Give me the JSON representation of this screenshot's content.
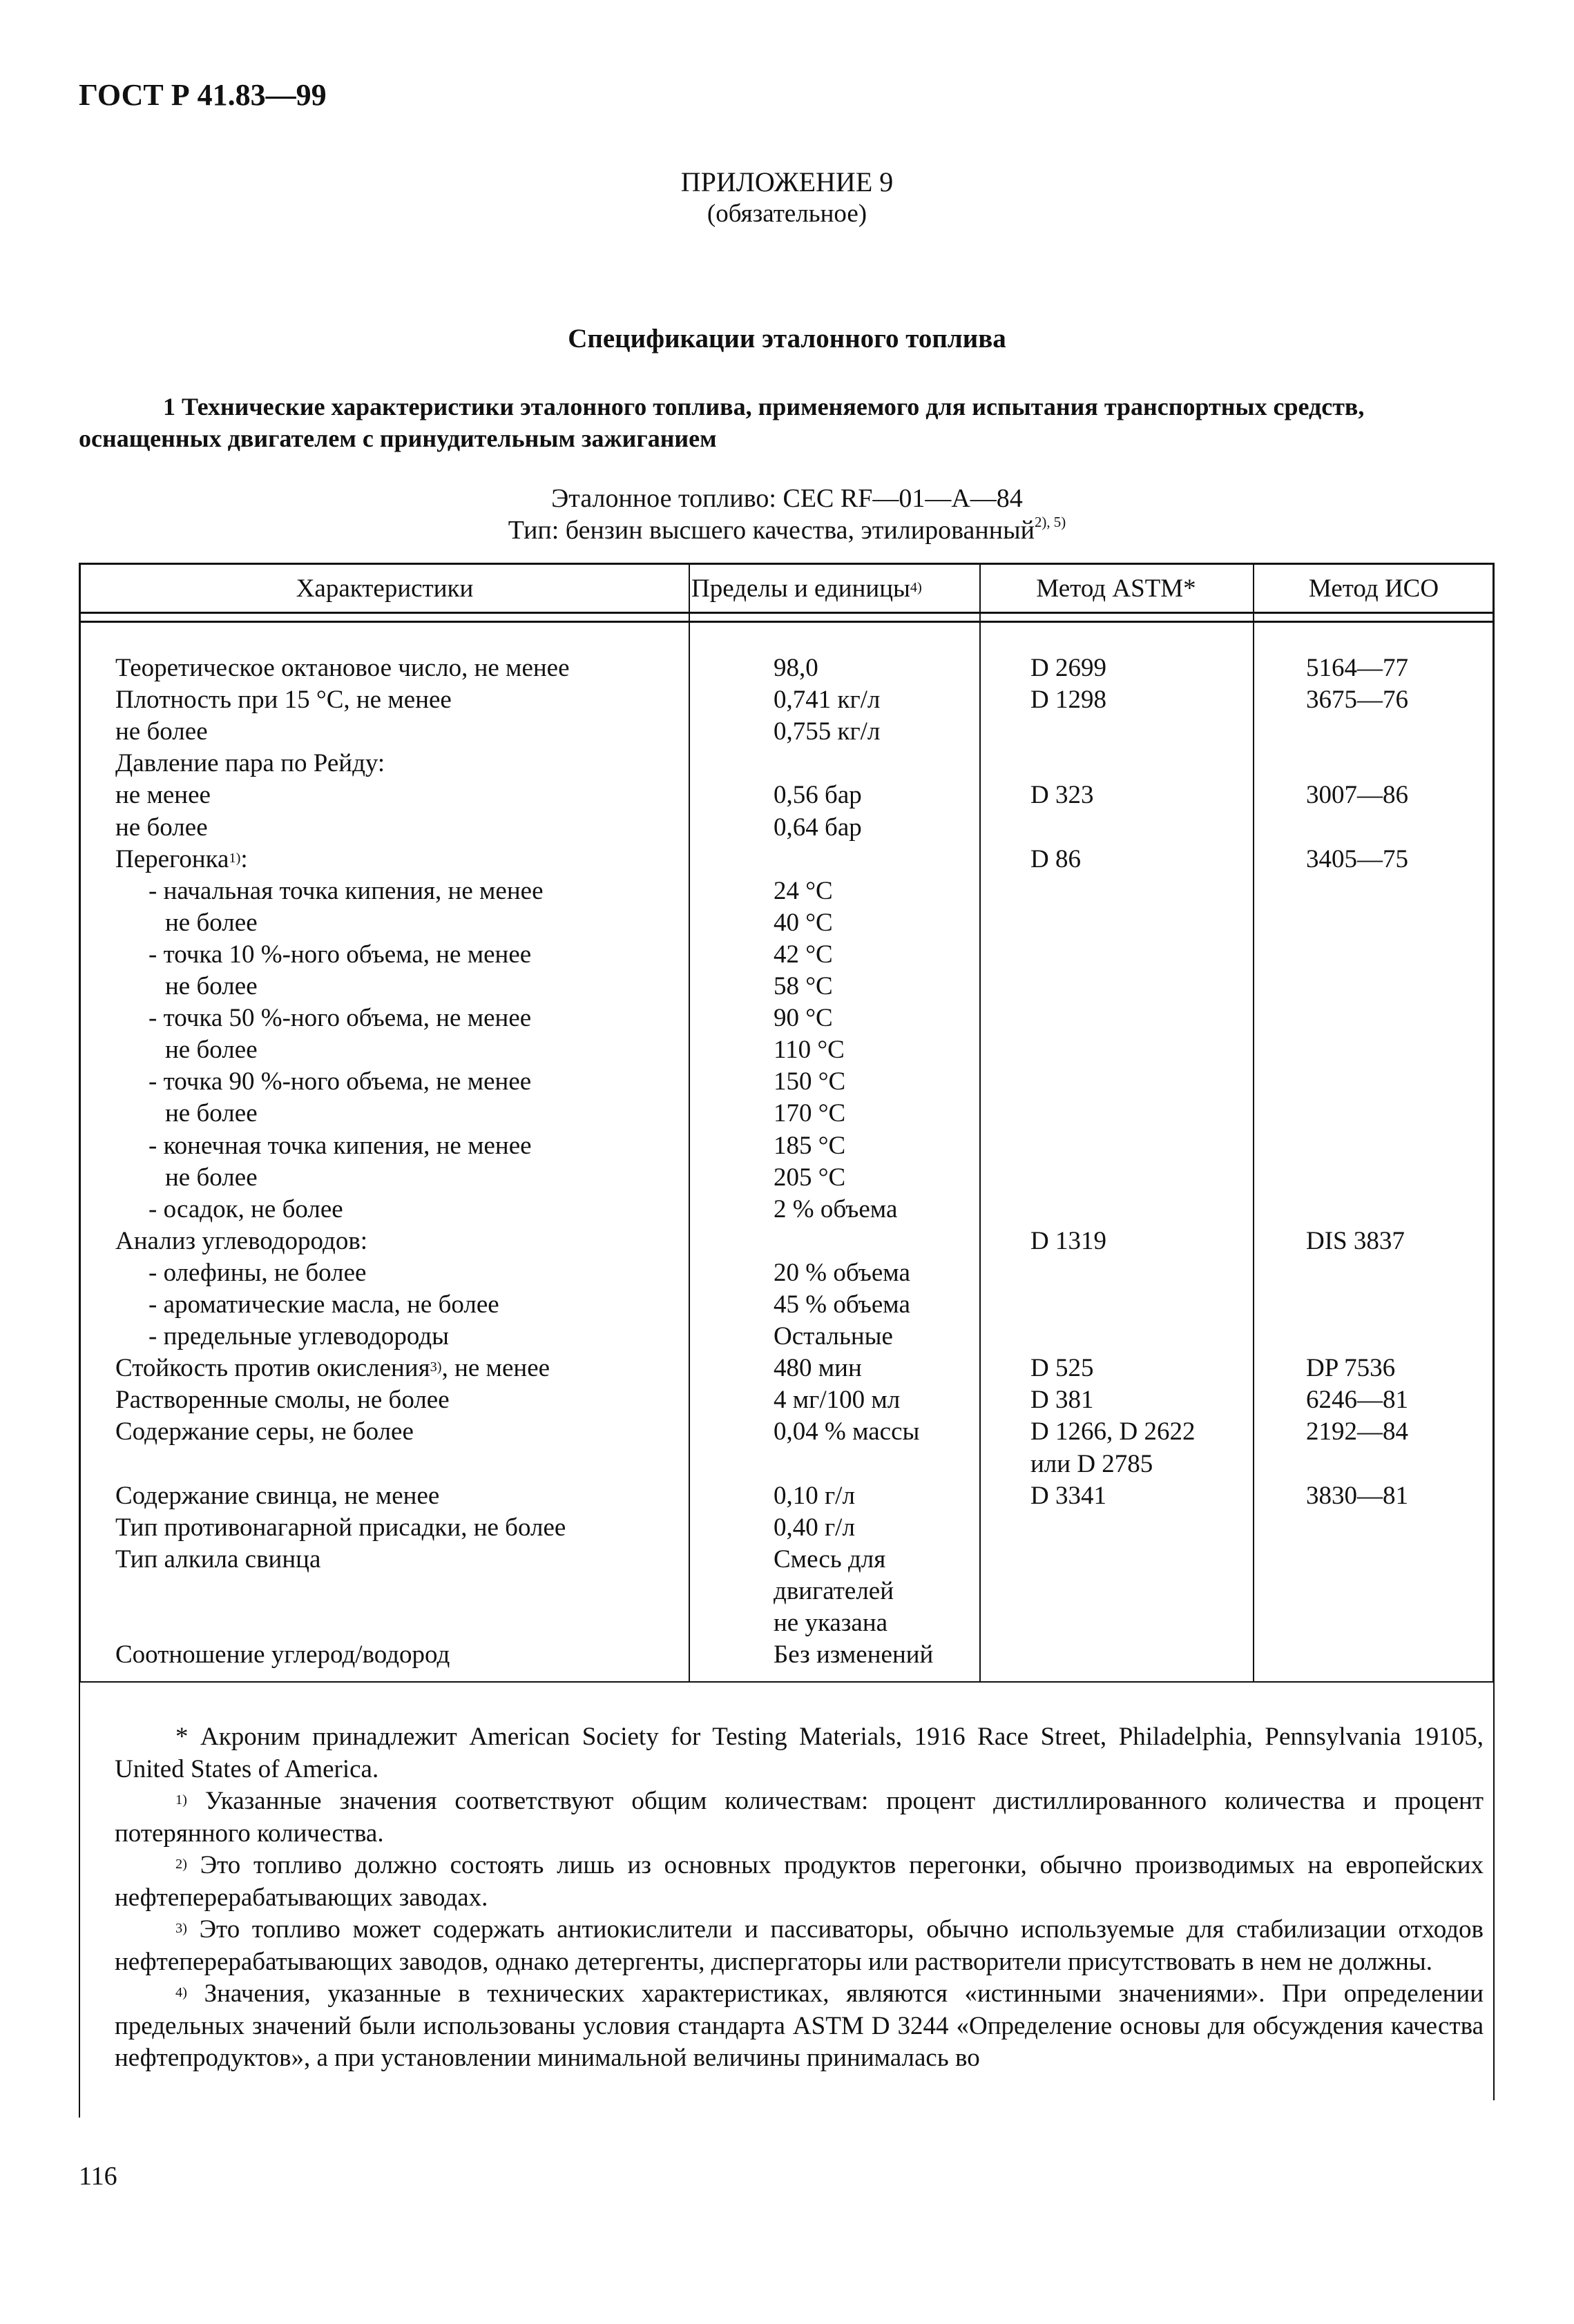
{
  "header": {
    "doc_code": "ГОСТ Р 41.83—99"
  },
  "appendix": {
    "label": "ПРИЛОЖЕНИЕ 9",
    "status": "(обязательное)"
  },
  "title": "Спецификации эталонного топлива",
  "section": {
    "line1": "1 Технические характеристики эталонного топлива, применяемого для испытания транспортных средств,",
    "line2": "оснащенных двигателем с принудительным зажиганием"
  },
  "fuel": {
    "reference": "Эталонное топливо: CEC RF—01—A—84",
    "type": "Тип: бензин высшего качества, этилированный",
    "type_sup": "2), 5)"
  },
  "table": {
    "headers": {
      "characteristics": "Характеристики",
      "limits": "Пределы и единицы",
      "limits_sup": "4)",
      "astm": "Метод ASTM*",
      "iso": "Метод ИСО"
    },
    "rows": [
      {
        "c": "Теоретическое октановое число, не менее",
        "l": "98,0",
        "a": "D 2699",
        "i": "5164—77",
        "ind": 0
      },
      {
        "c": "Плотность  при 15 °С, не менее",
        "l": "0,741 кг/л",
        "a": "D 1298",
        "i": "3675—76",
        "ind": 0
      },
      {
        "c": "не более",
        "l": "0,755 кг/л",
        "a": "",
        "i": "",
        "ind": 0
      },
      {
        "c": "Давление пара по Рейду:",
        "l": "",
        "a": "",
        "i": "",
        "ind": 0
      },
      {
        "c": "не менее",
        "l": "0,56 бар",
        "a": "D 323",
        "i": "3007—86",
        "ind": 0
      },
      {
        "c": "не более",
        "l": "0,64 бар",
        "a": "",
        "i": "",
        "ind": 0
      },
      {
        "c": "Перегонка",
        "sup": "1)",
        "c2": ":",
        "l": "",
        "a": "D 86",
        "i": "3405—75",
        "ind": 0
      },
      {
        "c": "- начальная точка кипения, не менее",
        "l": "24 °С",
        "a": "",
        "i": "",
        "ind": 1
      },
      {
        "c": "не более",
        "l": "40 °С",
        "a": "",
        "i": "",
        "ind": 2
      },
      {
        "c": "- точка 10 %-ного объема, не менее",
        "l": "42 °С",
        "a": "",
        "i": "",
        "ind": 1
      },
      {
        "c": "не более",
        "l": "58 °С",
        "a": "",
        "i": "",
        "ind": 2
      },
      {
        "c": "- точка 50 %-ного объема, не менее",
        "l": "90 °С",
        "a": "",
        "i": "",
        "ind": 1
      },
      {
        "c": "не более",
        "l": "110 °С",
        "a": "",
        "i": "",
        "ind": 2
      },
      {
        "c": "- точка 90 %-ного объема, не менее",
        "l": "150 °С",
        "a": "",
        "i": "",
        "ind": 1
      },
      {
        "c": "не более",
        "l": "170 °С",
        "a": "",
        "i": "",
        "ind": 2
      },
      {
        "c": "- конечная точка кипения, не менее",
        "l": "185 °С",
        "a": "",
        "i": "",
        "ind": 1
      },
      {
        "c": "не более",
        "l": "205 °С",
        "a": "",
        "i": "",
        "ind": 2
      },
      {
        "c": "- осадок, не более",
        "l": "2 % объема",
        "a": "",
        "i": "",
        "ind": 1
      },
      {
        "c": "Анализ углеводородов:",
        "l": "",
        "a": "D 1319",
        "i": "DIS 3837",
        "ind": 0
      },
      {
        "c": "- олефины, не более",
        "l": "20 % объема",
        "a": "",
        "i": "",
        "ind": 1
      },
      {
        "c": "- ароматические масла, не более",
        "l": "45 % объема",
        "a": "",
        "i": "",
        "ind": 1
      },
      {
        "c": "- предельные углеводороды",
        "l": "Остальные",
        "a": "",
        "i": "",
        "ind": 1
      },
      {
        "c": "Стойкость против окисления",
        "sup": "3)",
        "c2": ", не менее",
        "l": "480 мин",
        "a": "D 525",
        "i": "DP 7536",
        "ind": 0
      },
      {
        "c": "Растворенные смолы, не более",
        "l": "4 мг/100 мл",
        "a": "D 381",
        "i": "6246—81",
        "ind": 0
      },
      {
        "c": "Содержание серы, не более",
        "l": "0,04 % массы",
        "a": "D 1266, D 2622",
        "i": "2192—84",
        "ind": 0
      },
      {
        "c": "",
        "l": "",
        "a": "или D 2785",
        "i": "",
        "ind": 0
      },
      {
        "c": "Содержание свинца, не менее",
        "l": "0,10 г/л",
        "a": "D 3341",
        "i": "3830—81",
        "ind": 0
      },
      {
        "c": "Тип противонагарной присадки, не более",
        "l": "0,40 г/л",
        "a": "",
        "i": "",
        "ind": 0
      },
      {
        "c": "Тип алкила свинца",
        "l": "Смесь для",
        "a": "",
        "i": "",
        "ind": 0
      },
      {
        "c": "",
        "l": "двигателей",
        "a": "",
        "i": "",
        "ind": 0
      },
      {
        "c": "",
        "l": "не указана",
        "a": "",
        "i": "",
        "ind": 0
      },
      {
        "c": "Соотношение углерод/водород",
        "l": "Без изменений",
        "a": "",
        "i": "",
        "ind": 0
      }
    ]
  },
  "footnotes": [
    {
      "sup": "",
      "text": "* Акроним принадлежит American Society for Testing Materials, 1916 Race Street, Philadelphia, Pennsylvania 19105, United States of America."
    },
    {
      "sup": "1)",
      "text": " Указанные значения соответствуют общим количествам: процент дистиллированного количества и процент потерянного количества."
    },
    {
      "sup": "2)",
      "text": " Это топливо должно состоять лишь из основных продуктов перегонки, обычно производимых на европейских нефтеперерабатывающих заводах."
    },
    {
      "sup": "3)",
      "text": " Это топливо может содержать антиокислители и пассиваторы, обычно используемые для стабилизации отходов нефтеперерабатывающих заводов, однако детергенты,  диспергаторы или растворители присутствовать в нем не должны."
    },
    {
      "sup": "4)",
      "text": " Значения, указанные в технических характеристиках, являются «истинными значениями». При определении предельных значений были использованы условия стандарта ASTM D 3244 «Определение основы для обсуждения качества нефтепродуктов», а при установлении минимальной величины принималась во"
    }
  ],
  "page_number": "116"
}
